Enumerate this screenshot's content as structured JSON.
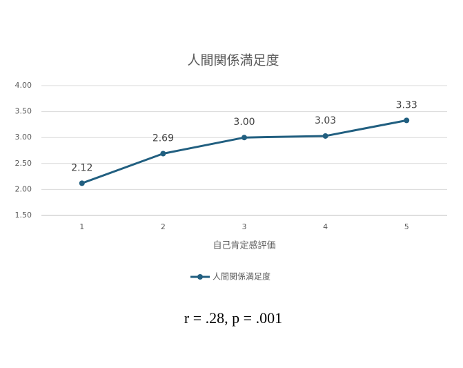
{
  "chart_data": {
    "type": "line",
    "title": "人間関係満足度",
    "categories": [
      "1",
      "2",
      "3",
      "4",
      "5"
    ],
    "series": [
      {
        "name": "人間関係満足度",
        "color": "#215f80",
        "values": [
          2.12,
          2.69,
          3.0,
          3.03,
          3.33
        ],
        "value_labels": [
          "2.12",
          "2.69",
          "3.00",
          "3.03",
          "3.33"
        ]
      }
    ],
    "x_label": "自己肯定感評価",
    "ylim": [
      1.5,
      4.0
    ],
    "yticks": [
      {
        "value": 1.5,
        "label": "1.50"
      },
      {
        "value": 2.0,
        "label": "2.00"
      },
      {
        "value": 2.5,
        "label": "2.50"
      },
      {
        "value": 3.0,
        "label": "3.00"
      },
      {
        "value": 3.5,
        "label": "3.50"
      },
      {
        "value": 4.0,
        "label": "4.00"
      }
    ],
    "grid": true,
    "legend": "bottom",
    "annotation": "r = .28, p = .001"
  }
}
